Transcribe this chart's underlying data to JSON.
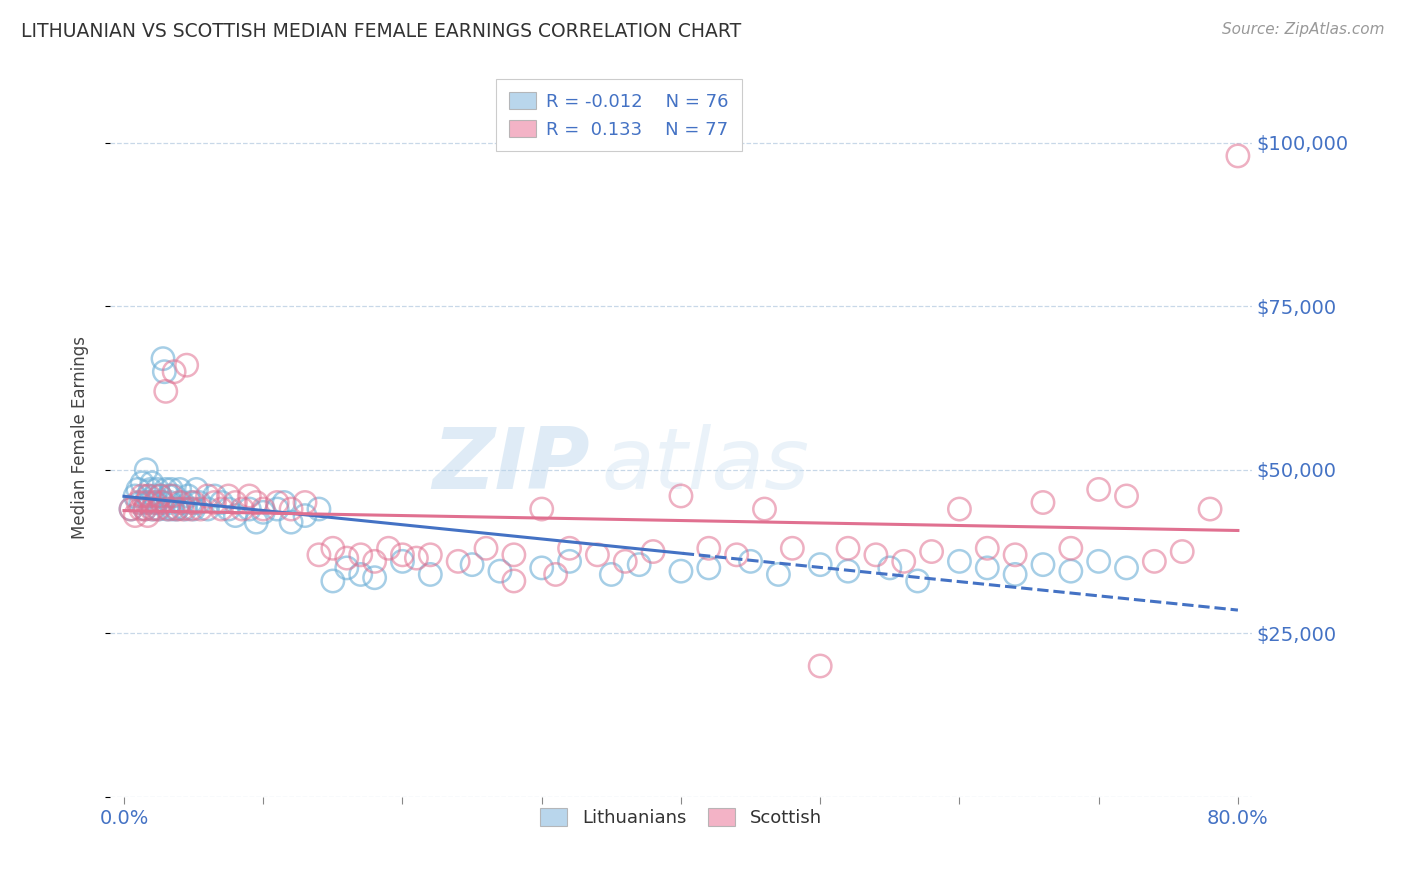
{
  "title": "LITHUANIAN VS SCOTTISH MEDIAN FEMALE EARNINGS CORRELATION CHART",
  "source": "Source: ZipAtlas.com",
  "ylabel": "Median Female Earnings",
  "yticks": [
    0,
    25000,
    50000,
    75000,
    100000
  ],
  "ytick_labels": [
    "",
    "$25,000",
    "$50,000",
    "$75,000",
    "$100,000"
  ],
  "xlim": [
    0.0,
    0.8
  ],
  "ylim": [
    0,
    110000
  ],
  "blue_color": "#6baed6",
  "pink_color": "#e07090",
  "axis_color": "#4472c4",
  "watermark_zip": "ZIP",
  "watermark_atlas": "atlas",
  "blue_scatter_x": [
    0.005,
    0.008,
    0.01,
    0.012,
    0.013,
    0.015,
    0.016,
    0.017,
    0.018,
    0.019,
    0.02,
    0.021,
    0.022,
    0.023,
    0.024,
    0.025,
    0.026,
    0.027,
    0.028,
    0.029,
    0.03,
    0.031,
    0.032,
    0.033,
    0.034,
    0.035,
    0.036,
    0.038,
    0.04,
    0.042,
    0.044,
    0.046,
    0.048,
    0.05,
    0.052,
    0.054,
    0.06,
    0.065,
    0.07,
    0.075,
    0.08,
    0.09,
    0.095,
    0.1,
    0.11,
    0.115,
    0.12,
    0.13,
    0.14,
    0.15,
    0.16,
    0.17,
    0.18,
    0.2,
    0.22,
    0.25,
    0.27,
    0.3,
    0.32,
    0.35,
    0.37,
    0.4,
    0.42,
    0.45,
    0.47,
    0.5,
    0.52,
    0.55,
    0.57,
    0.6,
    0.62,
    0.64,
    0.66,
    0.68,
    0.7,
    0.72
  ],
  "blue_scatter_y": [
    44000,
    46000,
    47000,
    45000,
    48000,
    44000,
    50000,
    46000,
    45000,
    47000,
    48000,
    44000,
    46000,
    45000,
    47000,
    44000,
    46000,
    45000,
    67000,
    65000,
    47000,
    44000,
    46000,
    45000,
    47000,
    44000,
    46000,
    44000,
    47000,
    45000,
    44000,
    46000,
    45000,
    44000,
    47000,
    45000,
    44000,
    46000,
    45000,
    44000,
    43000,
    44000,
    42000,
    43500,
    44000,
    45000,
    42000,
    43000,
    44000,
    33000,
    35000,
    34000,
    33500,
    36000,
    34000,
    35500,
    34500,
    35000,
    36000,
    34000,
    35500,
    34500,
    35000,
    36000,
    34000,
    35500,
    34500,
    35000,
    33000,
    36000,
    35000,
    34000,
    35500,
    34500,
    36000,
    35000
  ],
  "pink_scatter_x": [
    0.005,
    0.008,
    0.01,
    0.012,
    0.013,
    0.015,
    0.016,
    0.017,
    0.018,
    0.02,
    0.022,
    0.024,
    0.026,
    0.028,
    0.03,
    0.032,
    0.034,
    0.036,
    0.038,
    0.04,
    0.042,
    0.045,
    0.048,
    0.05,
    0.055,
    0.06,
    0.065,
    0.07,
    0.075,
    0.08,
    0.085,
    0.09,
    0.095,
    0.1,
    0.11,
    0.12,
    0.13,
    0.14,
    0.15,
    0.16,
    0.17,
    0.18,
    0.19,
    0.2,
    0.21,
    0.22,
    0.24,
    0.26,
    0.28,
    0.3,
    0.32,
    0.34,
    0.36,
    0.38,
    0.4,
    0.42,
    0.44,
    0.46,
    0.48,
    0.5,
    0.52,
    0.54,
    0.56,
    0.58,
    0.6,
    0.62,
    0.64,
    0.66,
    0.68,
    0.7,
    0.72,
    0.74,
    0.76,
    0.78,
    0.8,
    0.28,
    0.31
  ],
  "pink_scatter_y": [
    44000,
    43000,
    45000,
    44000,
    46000,
    44000,
    45000,
    43000,
    46000,
    44000,
    45000,
    44000,
    46000,
    45000,
    62000,
    44000,
    46000,
    65000,
    44000,
    45000,
    44000,
    66000,
    44000,
    45000,
    44000,
    46000,
    45000,
    44000,
    46000,
    45000,
    44000,
    46000,
    45000,
    44000,
    45000,
    44000,
    45000,
    37000,
    38000,
    36500,
    37000,
    36000,
    38000,
    37000,
    36500,
    37000,
    36000,
    38000,
    37000,
    44000,
    38000,
    37000,
    36000,
    37500,
    46000,
    38000,
    37000,
    44000,
    38000,
    20000,
    38000,
    37000,
    36000,
    37500,
    44000,
    38000,
    37000,
    45000,
    38000,
    47000,
    46000,
    36000,
    37500,
    44000,
    98000,
    33000,
    34000
  ],
  "xticks": [
    0.0,
    0.1,
    0.2,
    0.3,
    0.4,
    0.5,
    0.6,
    0.7,
    0.8
  ],
  "xtick_labels_show": [
    "0.0%",
    "",
    "",
    "",
    "",
    "",
    "",
    "",
    "80.0%"
  ]
}
